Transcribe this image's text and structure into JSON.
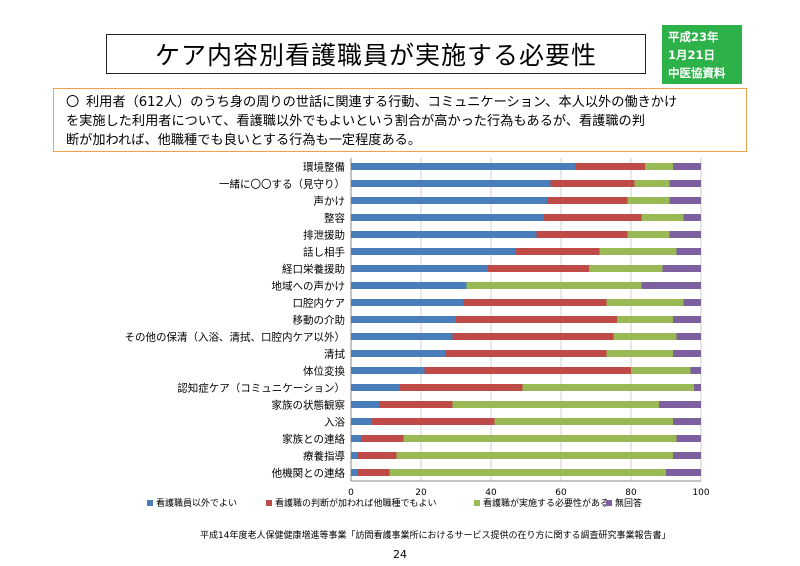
{
  "header": {
    "title": "ケア内容別看護職員が実施する必要性",
    "badge_lines": [
      "平成23年",
      "1月21日",
      "中医協資料"
    ]
  },
  "note": {
    "bullet": "〇",
    "lines": [
      "利用者（612人）のうち身の周りの世話に関連する行動、コミュニケーション、本人以外の働きかけ",
      "を実施した利用者について、看護職以外でもよいという割合が高かった行為もあるが、看護職の判",
      "断が加われば、他職種でも良いとする行為も一定程度ある。"
    ]
  },
  "chart_data": {
    "type": "bar",
    "orientation": "horizontal",
    "stacked": true,
    "categories": [
      "環境整備",
      "一緒に〇〇する（見守り）",
      "声かけ",
      "整容",
      "排泄援助",
      "話し相手",
      "経口栄養援助",
      "地域への声かけ",
      "口腔内ケア",
      "移動の介助",
      "その他の保清（入浴、清拭、口腔内ケア以外）",
      "清拭",
      "体位変換",
      "認知症ケア（コミュニケーション）",
      "家族の状態観察",
      "入浴",
      "家族との連絡",
      "療養指導",
      "他機関との連絡"
    ],
    "series": [
      {
        "name": "看護職員以外でよい",
        "color": "#4a7ebb",
        "values": [
          64,
          57,
          56,
          55,
          53,
          47,
          39,
          33,
          32,
          30,
          29,
          27,
          21,
          14,
          8,
          6,
          3,
          2,
          2
        ]
      },
      {
        "name": "看護職の判断が加われば他職種でもよい",
        "color": "#be4b48",
        "values": [
          20,
          24,
          23,
          28,
          26,
          24,
          29,
          0,
          41,
          46,
          46,
          46,
          59,
          35,
          21,
          35,
          12,
          11,
          9
        ]
      },
      {
        "name": "看護職が実施する必要性がある",
        "color": "#98b954",
        "values": [
          8,
          10,
          12,
          12,
          12,
          22,
          21,
          50,
          22,
          16,
          18,
          19,
          17,
          49,
          59,
          51,
          78,
          79,
          79
        ]
      },
      {
        "name": "無回答",
        "color": "#7d60a0",
        "values": [
          8,
          9,
          9,
          5,
          9,
          7,
          11,
          17,
          5,
          8,
          7,
          8,
          3,
          2,
          12,
          8,
          7,
          8,
          10
        ]
      }
    ],
    "xlim": [
      0,
      100
    ],
    "xticks": [
      0,
      20,
      40,
      60,
      80,
      100
    ],
    "xlabel": "",
    "ylabel": "",
    "grid": true,
    "legend_position": "bottom"
  },
  "footer": {
    "source": "平成14年度老人保健健康増進等事業「訪問看護事業所におけるサービス提供の在り方に関する調査研究事業報告書」",
    "page": "24"
  }
}
